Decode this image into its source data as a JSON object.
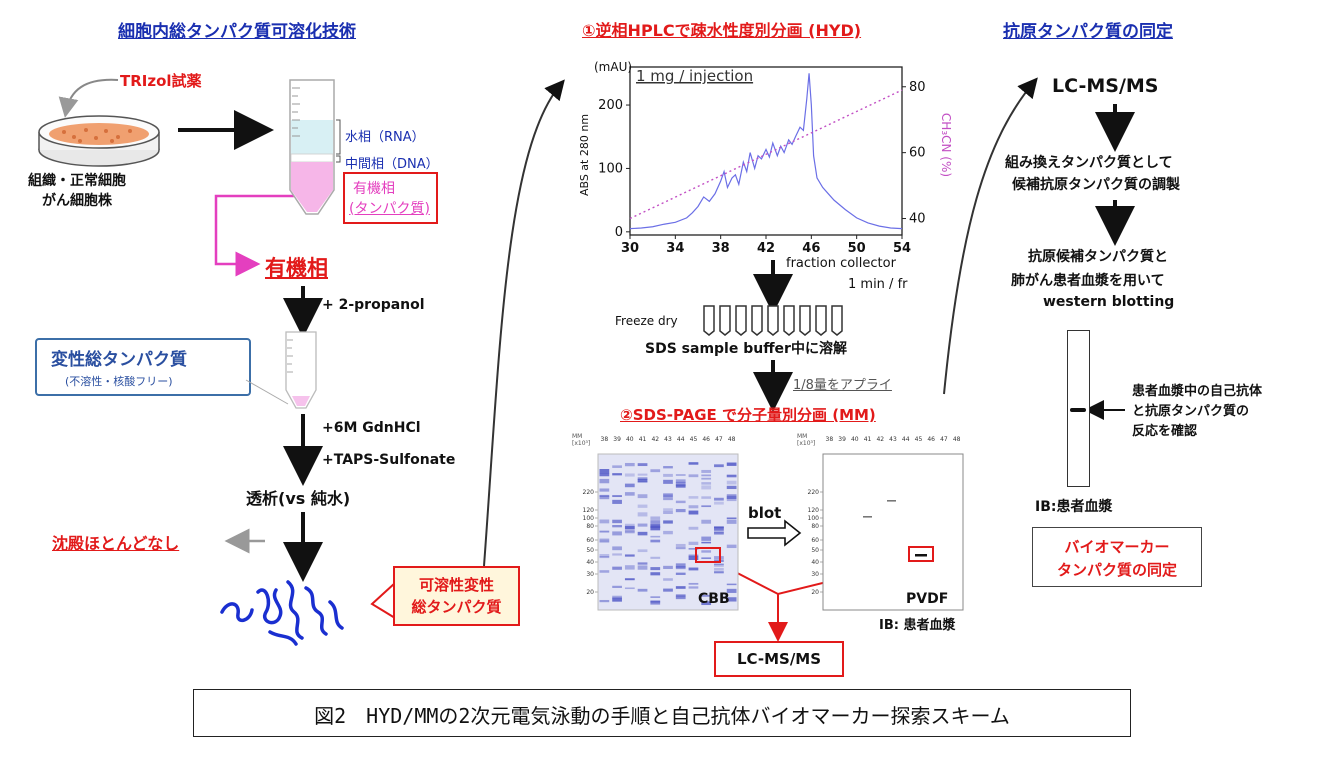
{
  "headers": {
    "left": "細胞内総タンパク質可溶化技術",
    "center_top": "①逆相HPLCで疎水性度別分画 (HYD)",
    "right": "抗原タンパク質の同定",
    "center_mid": "②SDS-PAGE で分子量別分画 (MM)"
  },
  "left": {
    "trizol": "TRIzol試薬",
    "tissue_line1": "組織・正常細胞",
    "tissue_line2": "がん細胞株",
    "aqueous": "水相（RNA）",
    "interphase": "中間相（DNA）",
    "organic_line1": "有機相",
    "organic_line2": "(タンパク質)",
    "organic_big": "有機相",
    "step_propanol": "+ 2-propanol",
    "denatured_line1": "変性総タンパク質",
    "denatured_line2": "(不溶性・核酸フリー)",
    "step_gdn": "+6M GdnHCl",
    "step_taps": "+TAPS-Sulfonate",
    "dialysis": "透析(vs 純水)",
    "no_precip": "沈殿ほとんどなし",
    "soluble_line1": "可溶性変性",
    "soluble_line2": "総タンパク質"
  },
  "hplc": {
    "y_unit": "(mAU)",
    "y_label": "ABS at 280 nm",
    "y2_label": "CH₃CN (%)",
    "note": "1 mg / injection",
    "collector_line1": "fraction collector",
    "collector_line2": "1 min / fr",
    "freeze_dry": "Freeze dry",
    "dissolve": "SDS sample buffer中に溶解",
    "apply": "1/8量をアプライ"
  },
  "chart_data": {
    "type": "line",
    "title": "",
    "xlabel": "",
    "ylabel": "ABS at 280 nm",
    "y2label": "CH₃CN (%)",
    "xlim": [
      30,
      54
    ],
    "ylim": [
      -5,
      260
    ],
    "y2lim": [
      35,
      86
    ],
    "x_ticks": [
      30,
      34,
      38,
      42,
      46,
      50,
      54
    ],
    "y_ticks": [
      0,
      100,
      200
    ],
    "y2_ticks": [
      40,
      60,
      80
    ],
    "series": [
      {
        "axis": "left",
        "color": "#6b6fe6",
        "x": [
          30,
          31,
          32,
          33,
          34,
          35,
          35.5,
          36,
          36.5,
          37,
          37.5,
          38,
          38.3,
          38.6,
          39,
          39.3,
          39.6,
          40,
          40.3,
          40.6,
          41,
          41.3,
          41.6,
          42,
          42.3,
          42.6,
          43,
          43.3,
          43.6,
          44,
          44.3,
          44.6,
          45,
          45.3,
          45.6,
          45.8,
          46,
          46.2,
          46.5,
          47,
          47.5,
          48,
          49,
          50,
          51,
          52,
          53,
          54
        ],
        "y": [
          5,
          6,
          8,
          12,
          15,
          22,
          30,
          40,
          55,
          48,
          60,
          80,
          95,
          70,
          85,
          90,
          75,
          110,
          95,
          125,
          100,
          120,
          115,
          130,
          118,
          140,
          120,
          135,
          125,
          145,
          138,
          150,
          165,
          160,
          210,
          250,
          200,
          120,
          85,
          70,
          60,
          50,
          35,
          22,
          14,
          9,
          6,
          5
        ]
      },
      {
        "axis": "right",
        "color": "#c24fc4",
        "style": "dotted",
        "x": [
          30,
          54
        ],
        "y": [
          40,
          79
        ]
      }
    ]
  },
  "gels": {
    "cbb": {
      "label": "CBB",
      "unit": "MM\n[x10³]",
      "lanes": [
        "38",
        "39",
        "40",
        "41",
        "42",
        "43",
        "44",
        "45",
        "46",
        "47",
        "48"
      ],
      "markers": [
        "220",
        "120",
        "100",
        "80",
        "60",
        "50",
        "40",
        "30",
        "20"
      ]
    },
    "pvdf": {
      "label": "PVDF",
      "unit": "MM\n[x10³]",
      "lanes": [
        "38",
        "39",
        "40",
        "41",
        "42",
        "43",
        "44",
        "45",
        "46",
        "47",
        "48"
      ],
      "markers": [
        "220",
        "120",
        "100",
        "80",
        "60",
        "50",
        "40",
        "30",
        "20"
      ],
      "ib": "IB: 患者血漿"
    },
    "blot": "blot",
    "lcms": "LC-MS/MS"
  },
  "right": {
    "lcms": "LC-MS/MS",
    "prep_line1": "組み換えタンパク質として",
    "prep_line2": "候補抗原タンパク質の調製",
    "wb_line1": "抗原候補タンパク質と",
    "wb_line2": "肺がん患者血漿を用いて",
    "wb_line3": "western blotting",
    "confirm_line1": "患者血漿中の自己抗体",
    "confirm_line2": "と抗原タンパク質の",
    "confirm_line3": "反応を確認",
    "ib": "IB:患者血漿",
    "biomarker_line1": "バイオマーカー",
    "biomarker_line2": "タンパク質の同定"
  },
  "caption": "図2　HYD/MMの2次元電気泳動の手順と自己抗体バイオマーカー探索スキーム"
}
